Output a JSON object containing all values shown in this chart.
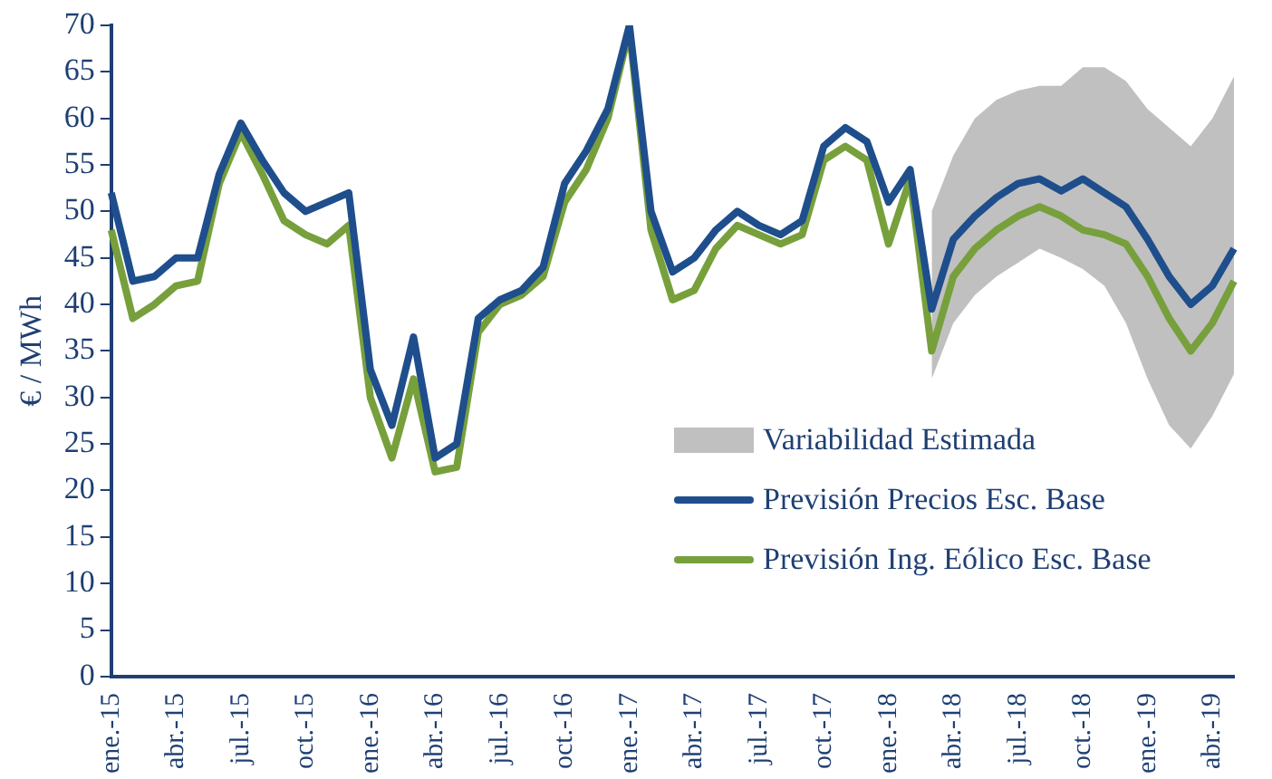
{
  "chart_data": {
    "type": "line",
    "ylabel": "€ / MWh",
    "categories": [
      "ene.-15",
      null,
      null,
      "abr.-15",
      null,
      null,
      "jul.-15",
      null,
      null,
      "oct.-15",
      null,
      null,
      "ene.-16",
      null,
      null,
      "abr.-16",
      null,
      null,
      "jul.-16",
      null,
      null,
      "oct.-16",
      null,
      null,
      "ene.-17",
      null,
      null,
      "abr.-17",
      null,
      null,
      "jul.-17",
      null,
      null,
      "oct.-17",
      null,
      null,
      "ene.-18",
      null,
      null,
      "abr.-18",
      null,
      null,
      "jul.-18",
      null,
      null,
      "oct.-18",
      null,
      null,
      "ene.-19",
      null,
      null,
      "abr.-19",
      null
    ],
    "series": [
      {
        "name": "Variabilidad Estimada",
        "type": "area",
        "color": "#c0c0c0",
        "values": [
          null,
          null,
          null,
          null,
          null,
          null,
          null,
          null,
          null,
          null,
          null,
          null,
          null,
          null,
          null,
          null,
          null,
          null,
          null,
          null,
          null,
          null,
          null,
          null,
          null,
          null,
          null,
          null,
          null,
          null,
          null,
          null,
          null,
          null,
          null,
          null,
          null,
          null,
          null,
          null,
          null,
          null,
          null,
          null,
          null,
          null,
          null,
          null,
          null,
          null,
          null,
          null,
          null
        ],
        "lower": [
          null,
          null,
          null,
          null,
          null,
          null,
          null,
          null,
          null,
          null,
          null,
          null,
          null,
          null,
          null,
          null,
          null,
          null,
          null,
          null,
          null,
          null,
          null,
          null,
          null,
          null,
          null,
          null,
          null,
          null,
          null,
          null,
          null,
          null,
          null,
          null,
          null,
          null,
          32,
          38,
          41,
          43,
          44.5,
          46,
          45,
          43.8,
          42,
          38,
          32,
          27,
          24.5,
          28,
          32.5
        ],
        "upper": [
          null,
          null,
          null,
          null,
          null,
          null,
          null,
          null,
          null,
          null,
          null,
          null,
          null,
          null,
          null,
          null,
          null,
          null,
          null,
          null,
          null,
          null,
          null,
          null,
          null,
          null,
          null,
          null,
          null,
          null,
          null,
          null,
          null,
          null,
          null,
          null,
          null,
          null,
          50,
          56,
          60,
          62,
          63,
          63.5,
          63.5,
          65.5,
          65.5,
          64,
          61,
          59,
          57,
          60,
          64.5
        ]
      },
      {
        "name": "Previsión Precios Esc. Base",
        "color": "#1f4e8c",
        "values": [
          52,
          42.5,
          43,
          45,
          45,
          54,
          59.5,
          55.5,
          52,
          50,
          51,
          52,
          33,
          27,
          36.5,
          23.5,
          25,
          38.5,
          40.5,
          41.5,
          44,
          53,
          56.5,
          61,
          70,
          50,
          43.5,
          45,
          48,
          50,
          48.5,
          47.5,
          49,
          57,
          59,
          57.5,
          51,
          54.5,
          39.5,
          47,
          49.5,
          51.5,
          53,
          53.5,
          52.2,
          53.5,
          52,
          50.5,
          47,
          43,
          40,
          42,
          46
        ]
      },
      {
        "name": "Previsión Ing. Eólico Esc. Base",
        "color": "#77a03c",
        "values": [
          48,
          38.5,
          40,
          42,
          42.5,
          53,
          58.5,
          54,
          49,
          47.5,
          46.5,
          48.5,
          30,
          23.5,
          32,
          22,
          22.5,
          37,
          40,
          41,
          43,
          51,
          54.5,
          60,
          69.5,
          48,
          40.5,
          41.5,
          46,
          48.5,
          47.5,
          46.5,
          47.5,
          55.5,
          57,
          55.5,
          46.5,
          53.5,
          35,
          43,
          46,
          48,
          49.5,
          50.5,
          49.5,
          48,
          47.5,
          46.5,
          43,
          38.5,
          35,
          38,
          42.5
        ]
      }
    ],
    "ylim": [
      0,
      70
    ],
    "yticks": [
      0,
      5,
      10,
      15,
      20,
      25,
      30,
      35,
      40,
      45,
      50,
      55,
      60,
      65,
      70
    ],
    "grid": false,
    "legend": "bottom right",
    "marker": "none",
    "line_style": "solid"
  }
}
